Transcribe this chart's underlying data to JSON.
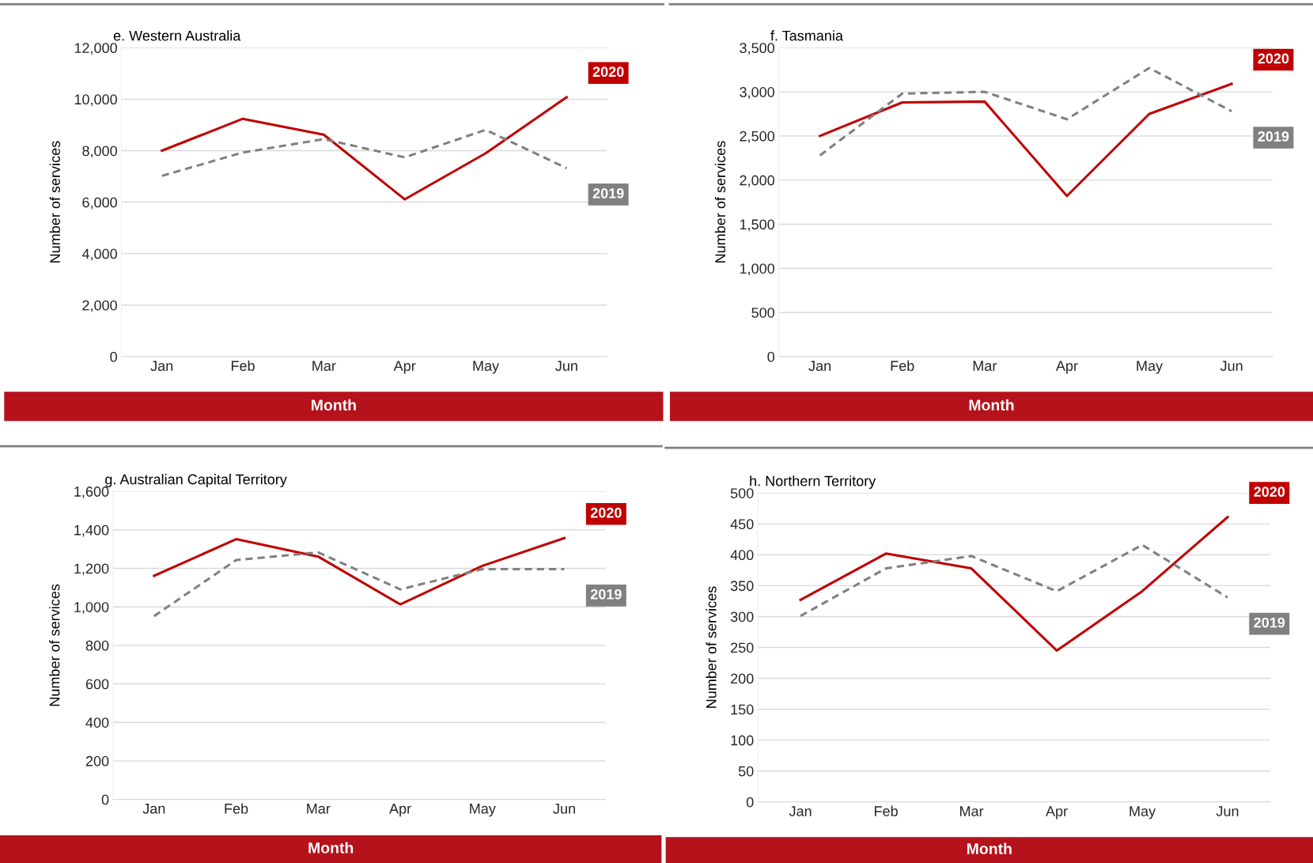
{
  "chart_data": [
    {
      "type": "line",
      "title": "e. Western Australia",
      "xlabel": "Month",
      "ylabel": "Number of services",
      "categories": [
        "Jan",
        "Feb",
        "Mar",
        "Apr",
        "May",
        "Jun"
      ],
      "series": [
        {
          "name": "2020",
          "color": "#c00000",
          "line_style": "solid",
          "values": [
            8000,
            9240,
            8620,
            6110,
            7900,
            10080
          ]
        },
        {
          "name": "2019",
          "color": "#808080",
          "line_style": "dashed",
          "values": [
            7020,
            7930,
            8450,
            7740,
            8810,
            7320
          ]
        }
      ],
      "ylim": [
        0,
        12000
      ],
      "yticks": [
        0,
        {
          "value": 2000,
          "label": "2,000"
        },
        {
          "value": 4000,
          "label": "4,000"
        },
        {
          "value": 6000,
          "label": "6,000"
        },
        {
          "value": 8000,
          "label": "8,000"
        },
        {
          "value": 10000,
          "label": "10,000"
        },
        {
          "value": 12000,
          "label": "12,000"
        }
      ],
      "grid": "y"
    },
    {
      "type": "line",
      "title": "f. Tasmania",
      "xlabel": "Month",
      "ylabel": "Number of services",
      "categories": [
        "Jan",
        "Feb",
        "Mar",
        "Apr",
        "May",
        "Jun"
      ],
      "series": [
        {
          "name": "2020",
          "color": "#c00000",
          "line_style": "solid",
          "values": [
            2500,
            2880,
            2890,
            1820,
            2750,
            3090
          ]
        },
        {
          "name": "2019",
          "color": "#808080",
          "line_style": "dashed",
          "values": [
            2280,
            2980,
            3000,
            2690,
            3270,
            2780
          ]
        }
      ],
      "ylim": [
        0,
        3500
      ],
      "yticks": [
        0,
        500,
        {
          "value": 1000,
          "label": "1,000"
        },
        {
          "value": 1500,
          "label": "1,500"
        },
        {
          "value": 2000,
          "label": "2,000"
        },
        {
          "value": 2500,
          "label": "2,500"
        },
        {
          "value": 3000,
          "label": "3,000"
        },
        {
          "value": 3500,
          "label": "3,500"
        }
      ],
      "grid": "y"
    },
    {
      "type": "line",
      "title": "g. Australian Capital Territory",
      "xlabel": "Month",
      "ylabel": "Number of services",
      "categories": [
        "Jan",
        "Feb",
        "Mar",
        "Apr",
        "May",
        "Jun"
      ],
      "series": [
        {
          "name": "2020",
          "color": "#c00000",
          "line_style": "solid",
          "values": [
            1161,
            1352,
            1261,
            1013,
            1213,
            1357
          ]
        },
        {
          "name": "2019",
          "color": "#808080",
          "line_style": "dashed",
          "values": [
            952,
            1243,
            1283,
            1091,
            1196,
            1196
          ]
        }
      ],
      "ylim": [
        0,
        1600
      ],
      "yticks": [
        0,
        200,
        400,
        600,
        800,
        {
          "value": 1000,
          "label": "1,000"
        },
        {
          "value": 1200,
          "label": "1,200"
        },
        {
          "value": 1400,
          "label": "1,400"
        },
        {
          "value": 1600,
          "label": "1,600"
        }
      ],
      "grid": "y"
    },
    {
      "type": "line",
      "title": "h. Northern Territory",
      "xlabel": "Month",
      "ylabel": "Number of services",
      "categories": [
        "Jan",
        "Feb",
        "Mar",
        "Apr",
        "May",
        "Jun"
      ],
      "series": [
        {
          "name": "2020",
          "color": "#c00000",
          "line_style": "solid",
          "values": [
            327,
            402,
            378,
            245,
            341,
            461
          ]
        },
        {
          "name": "2019",
          "color": "#808080",
          "line_style": "dashed",
          "values": [
            301,
            378,
            398,
            341,
            416,
            331
          ]
        }
      ],
      "ylim": [
        0,
        500
      ],
      "yticks": [
        0,
        50,
        100,
        150,
        200,
        250,
        300,
        350,
        400,
        450,
        500
      ],
      "grid": "y"
    }
  ]
}
